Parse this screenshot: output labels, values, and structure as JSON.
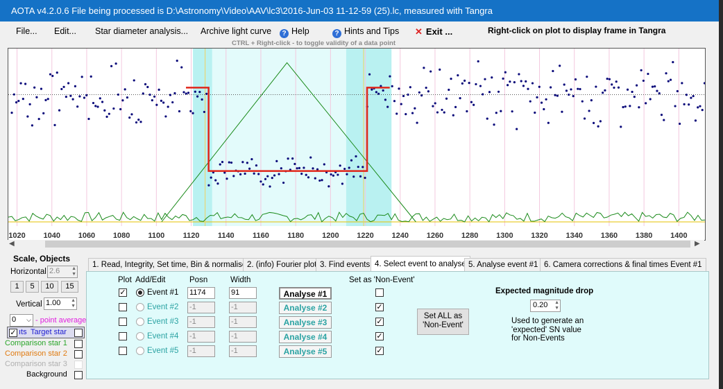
{
  "window": {
    "title": "AOTA v4.2.0.6   File being processed is D:\\Astronomy\\Video\\AAV\\lc3\\2016-Jun-03 11-12-59 (25).lc, measured with Tangra"
  },
  "menu": {
    "file": "File...",
    "edit": "Edit...",
    "star_diameter": "Star diameter analysis...",
    "archive": "Archive light curve",
    "help": "Help",
    "hints": "Hints and Tips",
    "exit": "Exit ...",
    "exit_icon": "✕",
    "help_icon": "?"
  },
  "hint": "CTRL + Right-click  -  to toggle validity of a data point",
  "right_click_note": "Right-click on plot to display frame in Tangra",
  "colors": {
    "accent": "#1572c6",
    "panel": "#e0fbfb",
    "event_line": "#e0261a",
    "model": "#1a8a1a",
    "points": "#0a0a7a"
  },
  "chart_data": {
    "type": "scatter",
    "xticks": [
      1020,
      1040,
      1060,
      1080,
      1100,
      1120,
      1140,
      1160,
      1180,
      1200,
      1220,
      1240,
      1260,
      1280,
      1300,
      1320,
      1340,
      1360,
      1380,
      1400
    ],
    "xlim": [
      1015,
      1415
    ],
    "ylim": [
      0,
      100
    ],
    "baseline_level": 74,
    "event_level": 31,
    "event": {
      "start": 1130,
      "end": 1221
    },
    "triangle": {
      "start": 1103,
      "peak": 1175,
      "end": 1249
    },
    "points_seed": 7
  },
  "left": {
    "scale_title": "Scale,  Objects",
    "horizontal_label": "Horizontal",
    "horizontal_value": "2.6",
    "scale_buttons": [
      "1",
      "5",
      "10",
      "15"
    ],
    "vertical_label": "Vertical",
    "vertical_value": "1.00",
    "point_avg_value": "0",
    "point_avg_label": "- point average",
    "target_prefix": "ıts",
    "target_label": "Target star",
    "comp1": "Comparison star 1",
    "comp2": "Comparison star 2",
    "comp3": "Comparison star 3",
    "background": "Background"
  },
  "tabs": [
    {
      "label": "1.  Read, Integrity, Set time, Bin & normalise"
    },
    {
      "label": "2. (info)  Fourier plot"
    },
    {
      "label": "3. Find events"
    },
    {
      "label": "4. Select event to analyse"
    },
    {
      "label": "5. Analyse event #1"
    },
    {
      "label": "6. Camera corrections & final times Event #1"
    }
  ],
  "panel": {
    "col_plot": "Plot",
    "col_addedit": "Add/Edit",
    "col_posn": "Posn",
    "col_width": "Width",
    "col_nonevent": "Set as 'Non-Event'",
    "events": [
      {
        "name": "Event #1",
        "posn": "1174",
        "width": "91",
        "analyse": "Analyse #1",
        "plot": "✓",
        "nonevent": ""
      },
      {
        "name": "Event #2",
        "posn": "-1",
        "width": "-1",
        "analyse": "Analyse #2",
        "plot": "",
        "nonevent": "✓"
      },
      {
        "name": "Event #3",
        "posn": "-1",
        "width": "-1",
        "analyse": "Analyse #3",
        "plot": "",
        "nonevent": "✓"
      },
      {
        "name": "Event #4",
        "posn": "-1",
        "width": "-1",
        "analyse": "Analyse #4",
        "plot": "",
        "nonevent": "✓"
      },
      {
        "name": "Event #5",
        "posn": "-1",
        "width": "-1",
        "analyse": "Analyse #5",
        "plot": "",
        "nonevent": "✓"
      }
    ],
    "set_all_line1": "Set ALL as",
    "set_all_line2": "'Non-Event'",
    "mag_drop_title": "Expected magnitude drop",
    "mag_drop_value": "0.20",
    "note_line1": "Used to generate an",
    "note_line2": "'expected' SN value",
    "note_line3": "for Non-Events"
  }
}
